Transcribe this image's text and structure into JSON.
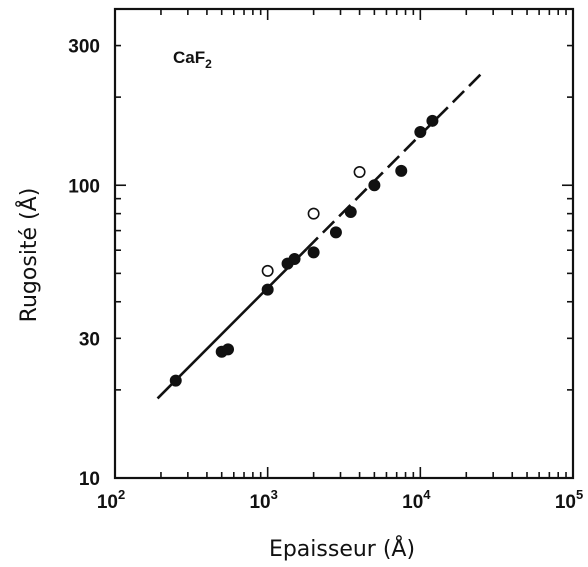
{
  "chart_data": {
    "type": "scatter",
    "title": "",
    "xlabel": "Epaisseur (Å)",
    "ylabel": "Rugosité (Å)",
    "x_scale": "log",
    "y_scale": "log",
    "xlim": [
      100,
      100000
    ],
    "ylim": [
      10,
      400
    ],
    "grid": false,
    "annotation": {
      "main": "CaF",
      "sub": "2"
    },
    "x_ticks": [
      {
        "base": "10",
        "exp": "2",
        "value": 100
      },
      {
        "base": "10",
        "exp": "3",
        "value": 1000
      },
      {
        "base": "10",
        "exp": "4",
        "value": 10000
      },
      {
        "base": "10",
        "exp": "5",
        "value": 100000
      }
    ],
    "y_ticks": [
      {
        "label": "10",
        "value": 10
      },
      {
        "label": "30",
        "value": 30
      },
      {
        "label": "100",
        "value": 100
      },
      {
        "label": "300",
        "value": 300
      }
    ],
    "series": [
      {
        "marker": "filled-circle",
        "points": [
          {
            "x": 250,
            "y": 21.5
          },
          {
            "x": 500,
            "y": 27
          },
          {
            "x": 550,
            "y": 27.5
          },
          {
            "x": 1000,
            "y": 44
          },
          {
            "x": 1350,
            "y": 54
          },
          {
            "x": 1500,
            "y": 56
          },
          {
            "x": 2000,
            "y": 59
          },
          {
            "x": 2800,
            "y": 69
          },
          {
            "x": 3500,
            "y": 81
          },
          {
            "x": 5000,
            "y": 100
          },
          {
            "x": 7500,
            "y": 112
          },
          {
            "x": 10000,
            "y": 152
          },
          {
            "x": 12000,
            "y": 166
          }
        ]
      },
      {
        "marker": "open-circle",
        "points": [
          {
            "x": 1000,
            "y": 51
          },
          {
            "x": 2000,
            "y": 80
          },
          {
            "x": 4000,
            "y": 111
          }
        ]
      }
    ],
    "fit_line": {
      "style": "solid-then-dashed",
      "points": [
        {
          "x": 190,
          "y": 18.7
        },
        {
          "x": 25000,
          "y": 240
        }
      ],
      "dash_start_x": 1800
    }
  }
}
